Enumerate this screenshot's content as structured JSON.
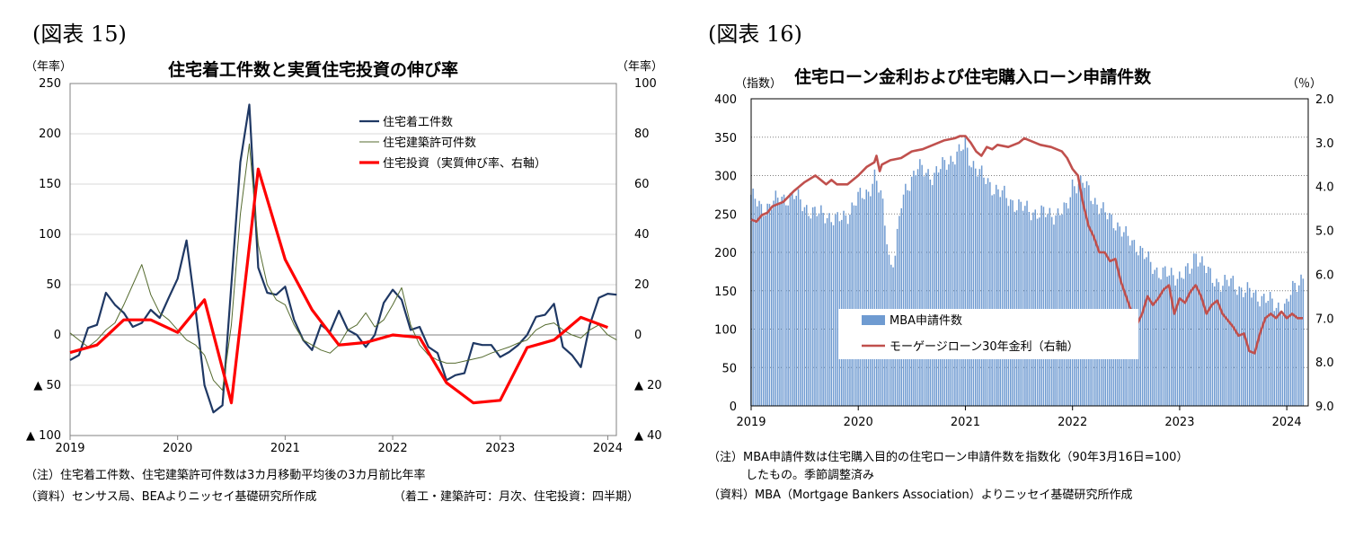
{
  "chart_data": [
    {
      "type": "line",
      "figure_label": "(図表 15)",
      "title": "住宅着工件数と実質住宅投資の伸び率",
      "left_unit": "（年率）",
      "right_unit": "（年率）",
      "ylim_left": [
        -100,
        250
      ],
      "ylim_right": [
        -40,
        100
      ],
      "left_ticks": [
        {
          "v": 250,
          "label": "250"
        },
        {
          "v": 200,
          "label": "200"
        },
        {
          "v": 150,
          "label": "150"
        },
        {
          "v": 100,
          "label": "100"
        },
        {
          "v": 50,
          "label": "50"
        },
        {
          "v": 0,
          "label": "0"
        },
        {
          "v": -50,
          "label": "▲ 50"
        },
        {
          "v": -100,
          "label": "▲ 100"
        }
      ],
      "right_ticks": [
        {
          "v": 100,
          "label": "100"
        },
        {
          "v": 80,
          "label": "80"
        },
        {
          "v": 60,
          "label": "60"
        },
        {
          "v": 40,
          "label": "40"
        },
        {
          "v": 20,
          "label": "20"
        },
        {
          "v": 0,
          "label": "0"
        },
        {
          "v": -20,
          "label": "▲ 20"
        },
        {
          "v": -40,
          "label": "▲ 40"
        }
      ],
      "x_range": [
        2019,
        2024.08
      ],
      "x_ticks": [
        {
          "v": 2019,
          "label": "2019"
        },
        {
          "v": 2020,
          "label": "2020"
        },
        {
          "v": 2021,
          "label": "2021"
        },
        {
          "v": 2022,
          "label": "2022"
        },
        {
          "v": 2023,
          "label": "2023"
        },
        {
          "v": 2024,
          "label": "2024"
        }
      ],
      "series": [
        {
          "name": "住宅着工件数",
          "axis": "left",
          "color": "#1f3864",
          "width": 2.2,
          "x": [
            2019.0,
            2019.083,
            2019.167,
            2019.25,
            2019.333,
            2019.417,
            2019.5,
            2019.583,
            2019.667,
            2019.75,
            2019.833,
            2019.917,
            2020.0,
            2020.083,
            2020.167,
            2020.25,
            2020.333,
            2020.417,
            2020.5,
            2020.583,
            2020.667,
            2020.75,
            2020.833,
            2020.917,
            2021.0,
            2021.083,
            2021.167,
            2021.25,
            2021.333,
            2021.417,
            2021.5,
            2021.583,
            2021.667,
            2021.75,
            2021.833,
            2021.917,
            2022.0,
            2022.083,
            2022.167,
            2022.25,
            2022.333,
            2022.417,
            2022.5,
            2022.583,
            2022.667,
            2022.75,
            2022.833,
            2022.917,
            2023.0,
            2023.083,
            2023.167,
            2023.25,
            2023.333,
            2023.417,
            2023.5,
            2023.583,
            2023.667,
            2023.75,
            2023.833,
            2023.917,
            2024.0,
            2024.083
          ],
          "y": [
            -25,
            -20,
            7,
            10,
            42,
            30,
            22,
            8,
            12,
            25,
            17,
            37,
            56,
            94,
            25,
            -50,
            -77,
            -70,
            50,
            172,
            229,
            67,
            42,
            40,
            48,
            15,
            -5,
            -15,
            10,
            3,
            24,
            5,
            0,
            -12,
            0,
            32,
            45,
            35,
            5,
            8,
            -12,
            -18,
            -45,
            -40,
            -38,
            -8,
            -10,
            -10,
            -22,
            -17,
            -10,
            0,
            18,
            20,
            31,
            -12,
            -20,
            -32,
            10,
            37,
            41,
            40
          ]
        },
        {
          "name": "住宅建築許可件数",
          "axis": "left",
          "color": "#556b2f",
          "width": 1,
          "x": [
            2019.0,
            2019.083,
            2019.167,
            2019.25,
            2019.333,
            2019.417,
            2019.5,
            2019.583,
            2019.667,
            2019.75,
            2019.833,
            2019.917,
            2020.0,
            2020.083,
            2020.167,
            2020.25,
            2020.333,
            2020.417,
            2020.5,
            2020.583,
            2020.667,
            2020.75,
            2020.833,
            2020.917,
            2021.0,
            2021.083,
            2021.167,
            2021.25,
            2021.333,
            2021.417,
            2021.5,
            2021.583,
            2021.667,
            2021.75,
            2021.833,
            2021.917,
            2022.0,
            2022.083,
            2022.167,
            2022.25,
            2022.333,
            2022.417,
            2022.5,
            2022.583,
            2022.667,
            2022.75,
            2022.833,
            2022.917,
            2023.0,
            2023.083,
            2023.167,
            2023.25,
            2023.333,
            2023.417,
            2023.5,
            2023.583,
            2023.667,
            2023.75,
            2023.833,
            2023.917,
            2024.0,
            2024.083
          ],
          "y": [
            2,
            -5,
            -12,
            -5,
            5,
            12,
            30,
            50,
            70,
            40,
            22,
            15,
            5,
            -5,
            -10,
            -20,
            -45,
            -55,
            10,
            120,
            190,
            90,
            50,
            35,
            30,
            10,
            -5,
            -10,
            -15,
            -18,
            -10,
            5,
            10,
            22,
            8,
            15,
            30,
            47,
            10,
            -10,
            -20,
            -25,
            -28,
            -28,
            -26,
            -24,
            -22,
            -18,
            -15,
            -12,
            -8,
            -5,
            5,
            10,
            12,
            5,
            0,
            -3,
            5,
            10,
            0,
            -5
          ]
        },
        {
          "name": "住宅投資（実質伸び率、右軸）",
          "axis": "right",
          "color": "#ff0000",
          "width": 3.2,
          "x": [
            2019.0,
            2019.25,
            2019.5,
            2019.75,
            2020.0,
            2020.25,
            2020.5,
            2020.75,
            2021.0,
            2021.25,
            2021.5,
            2021.75,
            2022.0,
            2022.25,
            2022.5,
            2022.75,
            2023.0,
            2023.25,
            2023.5,
            2023.75,
            2024.0
          ],
          "y": [
            -7,
            -4,
            6,
            6,
            1,
            14,
            -27,
            66,
            30,
            10,
            -4,
            -3,
            0,
            -1,
            -19,
            -27,
            -26,
            -5,
            -2,
            7,
            3
          ]
        }
      ],
      "legend": [
        "住宅着工件数",
        "住宅建築許可件数",
        "住宅投資（実質伸び率、右軸）"
      ],
      "legend_position": "upper-right",
      "notes": [
        "（注）住宅着工件数、住宅建築許可件数は3カ月移動平均後の3カ月前比年率",
        "（資料）センサス局、BEAよりニッセイ基礎研究所作成",
        "（着工・建築許可：月次、住宅投資：四半期）"
      ]
    },
    {
      "type": "bar",
      "figure_label": "(図表 16)",
      "title": "住宅ローン金利および住宅購入ローン申請件数",
      "left_unit": "（指数）",
      "right_unit": "（％）",
      "ylim_left": [
        0,
        400
      ],
      "ylim_right_inverted": [
        2.0,
        9.0
      ],
      "left_ticks": [
        {
          "v": 400,
          "label": "400"
        },
        {
          "v": 350,
          "label": "350"
        },
        {
          "v": 300,
          "label": "300"
        },
        {
          "v": 250,
          "label": "250"
        },
        {
          "v": 200,
          "label": "200"
        },
        {
          "v": 150,
          "label": "150"
        },
        {
          "v": 100,
          "label": "100"
        },
        {
          "v": 50,
          "label": "50"
        },
        {
          "v": 0,
          "label": "0"
        }
      ],
      "right_ticks": [
        {
          "v": 2.0,
          "label": "2.0"
        },
        {
          "v": 3.0,
          "label": "3.0"
        },
        {
          "v": 4.0,
          "label": "4.0"
        },
        {
          "v": 5.0,
          "label": "5.0"
        },
        {
          "v": 6.0,
          "label": "6.0"
        },
        {
          "v": 7.0,
          "label": "7.0"
        },
        {
          "v": 8.0,
          "label": "8.0"
        },
        {
          "v": 9.0,
          "label": "9.0"
        }
      ],
      "x_range": [
        2019,
        2024.2
      ],
      "x_ticks": [
        {
          "v": 2019,
          "label": "2019"
        },
        {
          "v": 2020,
          "label": "2020"
        },
        {
          "v": 2021,
          "label": "2021"
        },
        {
          "v": 2022,
          "label": "2022"
        },
        {
          "v": 2023,
          "label": "2023"
        },
        {
          "v": 2024,
          "label": "2024"
        }
      ],
      "bars": {
        "name": "MBA申請件数",
        "color": "#6f9bd1",
        "weekly": true,
        "anchors_x": [
          2019.0,
          2019.1,
          2019.2,
          2019.3,
          2019.4,
          2019.5,
          2019.6,
          2019.7,
          2019.8,
          2019.9,
          2020.0,
          2020.1,
          2020.15,
          2020.22,
          2020.27,
          2020.3,
          2020.35,
          2020.4,
          2020.45,
          2020.55,
          2020.7,
          2020.85,
          2020.95,
          2021.0,
          2021.05,
          2021.15,
          2021.3,
          2021.5,
          2021.7,
          2021.85,
          2021.95,
          2022.0,
          2022.1,
          2022.2,
          2022.3,
          2022.4,
          2022.5,
          2022.6,
          2022.7,
          2022.8,
          2022.9,
          2023.0,
          2023.1,
          2023.15,
          2023.2,
          2023.3,
          2023.4,
          2023.5,
          2023.6,
          2023.7,
          2023.8,
          2023.85,
          2023.9,
          2024.0,
          2024.05,
          2024.15
        ],
        "anchors_y": [
          275,
          255,
          265,
          270,
          275,
          260,
          250,
          250,
          240,
          250,
          270,
          280,
          300,
          270,
          220,
          180,
          200,
          260,
          285,
          310,
          300,
          320,
          330,
          340,
          320,
          300,
          280,
          260,
          250,
          250,
          255,
          290,
          290,
          270,
          250,
          240,
          220,
          210,
          190,
          175,
          170,
          170,
          175,
          200,
          190,
          165,
          160,
          160,
          150,
          145,
          140,
          135,
          130,
          130,
          150,
          170
        ]
      },
      "series": [
        {
          "name": "モーゲージローン30年金利（右軸）",
          "axis": "right",
          "color": "#c0504d",
          "width": 2.6,
          "x": [
            2019.0,
            2019.05,
            2019.1,
            2019.15,
            2019.2,
            2019.3,
            2019.4,
            2019.5,
            2019.6,
            2019.7,
            2019.75,
            2019.8,
            2019.9,
            2020.0,
            2020.08,
            2020.15,
            2020.17,
            2020.2,
            2020.22,
            2020.3,
            2020.4,
            2020.5,
            2020.6,
            2020.7,
            2020.8,
            2020.9,
            2020.95,
            2021.0,
            2021.05,
            2021.1,
            2021.15,
            2021.2,
            2021.25,
            2021.3,
            2021.4,
            2021.5,
            2021.55,
            2021.6,
            2021.7,
            2021.8,
            2021.9,
            2021.95,
            2022.0,
            2022.05,
            2022.1,
            2022.15,
            2022.2,
            2022.25,
            2022.3,
            2022.35,
            2022.4,
            2022.45,
            2022.5,
            2022.55,
            2022.6,
            2022.65,
            2022.7,
            2022.75,
            2022.8,
            2022.85,
            2022.9,
            2022.95,
            2023.0,
            2023.05,
            2023.1,
            2023.15,
            2023.2,
            2023.25,
            2023.3,
            2023.35,
            2023.4,
            2023.45,
            2023.5,
            2023.55,
            2023.6,
            2023.65,
            2023.7,
            2023.75,
            2023.8,
            2023.85,
            2023.9,
            2023.95,
            2024.0,
            2024.05,
            2024.1,
            2024.15
          ],
          "y": [
            4.75,
            4.8,
            4.65,
            4.6,
            4.45,
            4.35,
            4.1,
            3.9,
            3.75,
            3.95,
            3.85,
            3.95,
            3.95,
            3.75,
            3.55,
            3.45,
            3.3,
            3.65,
            3.5,
            3.4,
            3.35,
            3.2,
            3.15,
            3.05,
            2.95,
            2.9,
            2.85,
            2.85,
            3.0,
            3.2,
            3.3,
            3.1,
            3.15,
            3.05,
            3.1,
            3.0,
            2.9,
            2.95,
            3.05,
            3.1,
            3.2,
            3.35,
            3.6,
            3.75,
            4.4,
            4.9,
            5.15,
            5.5,
            5.5,
            5.7,
            5.65,
            6.15,
            6.5,
            6.85,
            7.15,
            6.9,
            6.5,
            6.7,
            6.55,
            6.35,
            6.25,
            6.9,
            6.55,
            6.65,
            6.4,
            6.25,
            6.5,
            6.9,
            6.7,
            6.6,
            6.9,
            7.05,
            7.2,
            7.4,
            7.35,
            7.75,
            7.8,
            7.35,
            7.0,
            6.9,
            7.0,
            6.85,
            7.0,
            6.9,
            7.0,
            7.0
          ]
        }
      ],
      "legend": [
        "MBA申請件数",
        "モーゲージローン30年金利（右軸）"
      ],
      "legend_position": "lower-center",
      "notes": [
        "（注）MBA申請件数は住宅購入目的の住宅ローン申請件数を指数化（90年3月16日=100）",
        "したもの。季節調整済み",
        "（資料）MBA（Mortgage Bankers Association）よりニッセイ基礎研究所作成"
      ]
    }
  ]
}
